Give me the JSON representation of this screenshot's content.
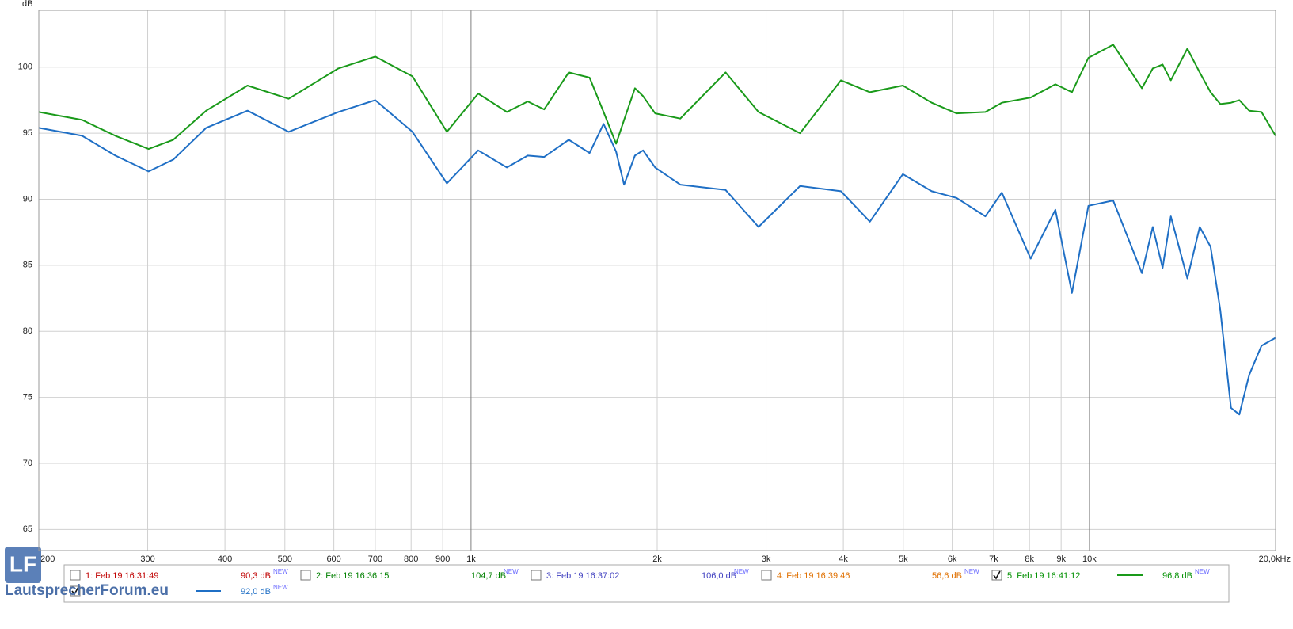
{
  "chart_data": {
    "type": "line",
    "y_label": "dB",
    "xscale": "log",
    "grid": true,
    "xlim": [
      200,
      20000
    ],
    "ylim": [
      63.4,
      104.3
    ],
    "yticks": [
      65,
      70,
      75,
      80,
      85,
      90,
      95,
      100
    ],
    "xticks": [
      200,
      300,
      400,
      500,
      600,
      700,
      800,
      900,
      {
        "value": 1000,
        "label": "1k"
      },
      {
        "value": 2000,
        "label": "2k"
      },
      {
        "value": 3000,
        "label": "3k"
      },
      {
        "value": 4000,
        "label": "4k"
      },
      {
        "value": 5000,
        "label": "5k"
      },
      {
        "value": 6000,
        "label": "6k"
      },
      {
        "value": 7000,
        "label": "7k"
      },
      {
        "value": 8000,
        "label": "8k"
      },
      {
        "value": 9000,
        "label": "9k"
      },
      {
        "value": 10000,
        "label": "10k"
      },
      {
        "value": 20000,
        "label": "20,0kHz"
      }
    ],
    "x": [
      200,
      235,
      266,
      301,
      330,
      373,
      435,
      507,
      610,
      700,
      804,
      914,
      1027,
      1143,
      1235,
      1313,
      1439,
      1555,
      1638,
      1716,
      1768,
      1841,
      1898,
      1985,
      2180,
      2580,
      2917,
      3404,
      3965,
      4415,
      4993,
      5558,
      6096,
      6788,
      7218,
      8035,
      8810,
      9369,
      9963,
      10925,
      12160,
      12660,
      13130,
      13540,
      14400,
      15080,
      15700,
      16280,
      16943,
      17475,
      18130,
      18980,
      20000
    ],
    "series": [
      {
        "name": "5: Feb 19 16:41:12",
        "color": "#1a9a1a",
        "values": [
          96.6,
          96.0,
          94.8,
          93.8,
          94.5,
          96.7,
          98.6,
          97.6,
          99.9,
          100.8,
          99.3,
          95.1,
          98.0,
          96.6,
          97.4,
          96.8,
          99.6,
          99.2,
          96.6,
          94.2,
          96.0,
          98.4,
          97.8,
          96.5,
          96.1,
          99.6,
          96.6,
          95.0,
          99.0,
          98.1,
          98.6,
          97.3,
          96.5,
          96.6,
          97.3,
          97.7,
          98.7,
          98.1,
          100.7,
          101.7,
          98.4,
          99.9,
          100.2,
          99.0,
          101.4,
          99.6,
          98.1,
          97.2,
          97.3,
          97.5,
          96.7,
          96.6,
          94.8
        ]
      },
      {
        "color": "#1f6fc5",
        "values": [
          95.4,
          94.8,
          93.3,
          92.1,
          93.0,
          95.4,
          96.7,
          95.1,
          96.6,
          97.5,
          95.1,
          91.2,
          93.7,
          92.4,
          93.3,
          93.2,
          94.5,
          93.5,
          95.7,
          93.6,
          91.1,
          93.3,
          93.7,
          92.4,
          91.1,
          90.7,
          87.9,
          91.0,
          90.6,
          88.3,
          91.9,
          90.6,
          90.1,
          88.7,
          90.5,
          85.5,
          89.2,
          82.9,
          89.5,
          89.9,
          84.4,
          87.9,
          84.8,
          88.7,
          84.0,
          87.9,
          86.4,
          81.6,
          74.2,
          73.7,
          76.7,
          78.9,
          79.5
        ]
      }
    ]
  },
  "legend": {
    "new_tag": "NEW",
    "items": [
      {
        "label": "1: Feb 19 16:31:49",
        "level": "90,3 dB",
        "color": "#c00000",
        "checked": false
      },
      {
        "label": "2: Feb 19 16:36:15",
        "level": "104,7 dB",
        "color": "#008000",
        "checked": false
      },
      {
        "label": "3: Feb 19 16:37:02",
        "level": "106,0 dB",
        "color": "#4040c0",
        "checked": false
      },
      {
        "label": "4: Feb 19 16:39:46",
        "level": "56,6 dB",
        "color": "#e07000",
        "checked": false
      },
      {
        "label": "5: Feb 19 16:41:12",
        "level": "96,8 dB",
        "color": "#009000",
        "checked": true,
        "line": "#1a9a1a"
      },
      {
        "level": "92,0 dB",
        "color": "#1f6fc5",
        "checked": true,
        "line": "#1f6fc5"
      }
    ]
  },
  "logo": {
    "mark": "LF",
    "text": "LautsprecherForum.eu"
  }
}
